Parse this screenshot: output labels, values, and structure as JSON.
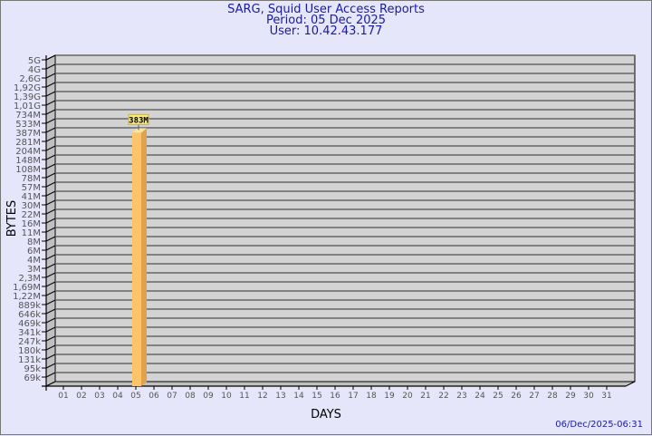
{
  "title": "SARG, Squid User Access Reports",
  "period": "Period: 05 Dec 2025",
  "user": "User: 10.42.43.177",
  "footer_timestamp": "06/Dec/2025-06:31",
  "colors": {
    "background": "#e6e6fa",
    "plot": "#d3d3d3",
    "bar": "#fdc46a",
    "bar_side": "#e0a24a",
    "bar_top": "#ffe49a",
    "title": "#1a1aa0"
  },
  "chart_data": {
    "type": "bar",
    "xlabel": "DAYS",
    "ylabel": "BYTES",
    "y_scale": "log",
    "grid": true,
    "y_tick_labels": [
      "5G",
      "4G",
      "2,6G",
      "1,92G",
      "1,39G",
      "1,01G",
      "734M",
      "533M",
      "387M",
      "281M",
      "204M",
      "148M",
      "108M",
      "78M",
      "57M",
      "41M",
      "30M",
      "22M",
      "16M",
      "11M",
      "8M",
      "6M",
      "4M",
      "3M",
      "2,3M",
      "1,69M",
      "1,22M",
      "889k",
      "646k",
      "469k",
      "341k",
      "247k",
      "180k",
      "131k",
      "95k",
      "69k"
    ],
    "categories": [
      "01",
      "02",
      "03",
      "04",
      "05",
      "06",
      "07",
      "08",
      "09",
      "10",
      "11",
      "12",
      "13",
      "14",
      "15",
      "16",
      "17",
      "18",
      "19",
      "20",
      "21",
      "22",
      "23",
      "24",
      "25",
      "26",
      "27",
      "28",
      "29",
      "30",
      "31"
    ],
    "values": [
      0,
      0,
      0,
      0,
      383000000,
      0,
      0,
      0,
      0,
      0,
      0,
      0,
      0,
      0,
      0,
      0,
      0,
      0,
      0,
      0,
      0,
      0,
      0,
      0,
      0,
      0,
      0,
      0,
      0,
      0,
      0
    ],
    "data_labels": {
      "05": "383M"
    }
  }
}
